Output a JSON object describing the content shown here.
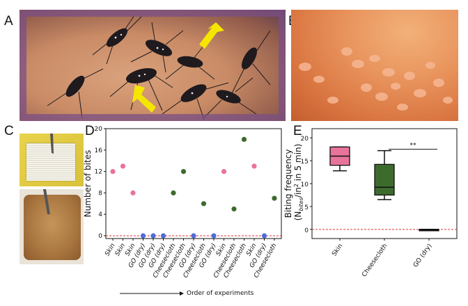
{
  "panels": {
    "A": "A",
    "B": "B",
    "C": "C",
    "D": "D",
    "E": "E"
  },
  "colors": {
    "skin": "#e8739b",
    "go_dry": "#4f6bd8",
    "cheesecloth": "#3d6b2e",
    "threshold": "#e03030",
    "arrow": "#f5e600"
  },
  "icons": {
    "arrow_a1": "yellow-arrow-icon",
    "arrow_a2": "yellow-arrow-icon"
  },
  "chart_data": [
    {
      "type": "scatter",
      "panel": "D",
      "ylabel": "Number of bites",
      "xlabel": "Order of experiments",
      "ylim": [
        0,
        20
      ],
      "yticks": [
        0,
        4,
        8,
        12,
        16,
        20
      ],
      "categories": [
        "Skin",
        "Skin",
        "Skin",
        "GO (dry)",
        "GO (dry)",
        "GO (dry)",
        "Cheesecloth",
        "Cheesecloth",
        "GO (dry)",
        "Cheesecloth",
        "GO (dry)",
        "Skin",
        "Cheesecloth",
        "Cheesecloth",
        "Skin",
        "GO (dry)",
        "Cheesecloth"
      ],
      "values": [
        12,
        13,
        8,
        0,
        0,
        0,
        8,
        12,
        0,
        6,
        0,
        12,
        5,
        18,
        13,
        0,
        7
      ],
      "reference_line": 0,
      "grid": false
    },
    {
      "type": "box",
      "panel": "E",
      "ylabel": "Biting frequency (Nbites/in² in 5 min)",
      "ylabel_parts": {
        "pre": "Biting frequency",
        "open": "(N",
        "sub": "bites",
        "mid": "/in",
        "sup": "2",
        "post": " in 5 min)"
      },
      "ylim": [
        -2,
        22
      ],
      "yticks": [
        0,
        5,
        10,
        15,
        20
      ],
      "categories": [
        "Skin",
        "Cheesecloth",
        "GO (dry)"
      ],
      "boxes": [
        {
          "name": "Skin",
          "min": 12.8,
          "q1": 14,
          "median": 16,
          "q3": 18,
          "max": 18
        },
        {
          "name": "Cheesecloth",
          "min": 6.5,
          "q1": 7.5,
          "median": 9.2,
          "q3": 14.2,
          "max": 17.2
        },
        {
          "name": "GO (dry)",
          "min": 0,
          "q1": 0,
          "median": 0,
          "q3": 0,
          "max": 0
        }
      ],
      "significance": "**",
      "reference_line": 0
    }
  ]
}
